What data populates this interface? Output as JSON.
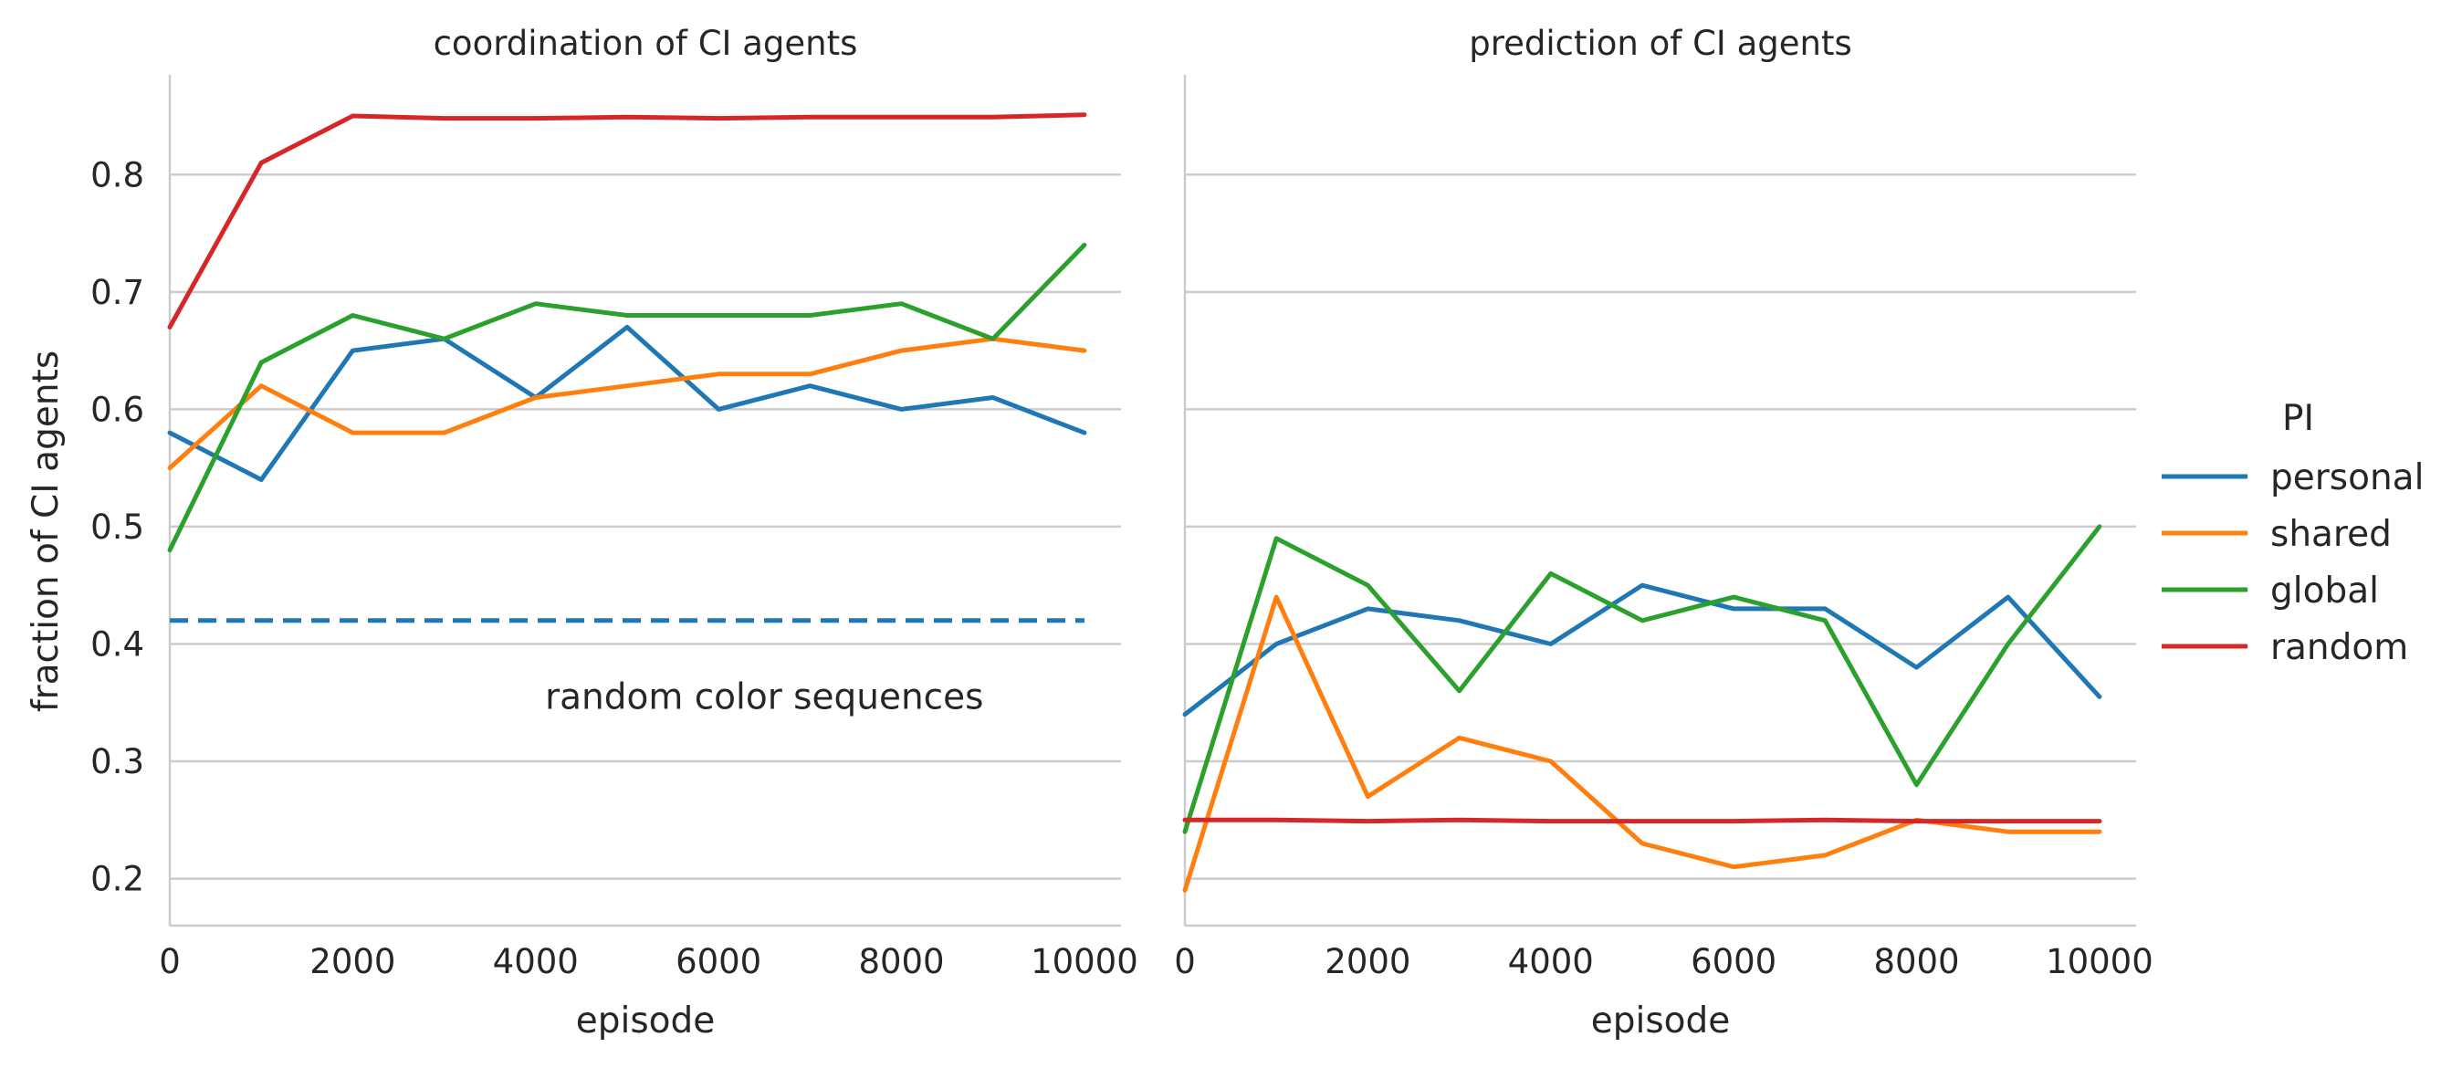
{
  "chart_data": [
    {
      "type": "line",
      "title": "coordination of CI agents",
      "xlabel": "episode",
      "ylabel": "fraction of CI agents",
      "xlim": [
        0,
        10400
      ],
      "ylim": [
        0.16,
        0.885
      ],
      "xticks": [
        0,
        2000,
        4000,
        6000,
        8000,
        10000
      ],
      "xtick_labels": [
        "0",
        "2000",
        "4000",
        "6000",
        "8000",
        "10000"
      ],
      "yticks": [
        0.2,
        0.3,
        0.4,
        0.5,
        0.6,
        0.7,
        0.8
      ],
      "ytick_labels": [
        "0.2",
        "0.3",
        "0.4",
        "0.5",
        "0.6",
        "0.7",
        "0.8"
      ],
      "grid": "horizontal",
      "x": [
        0,
        1000,
        2000,
        3000,
        4000,
        5000,
        6000,
        7000,
        8000,
        9000,
        10000
      ],
      "series": [
        {
          "name": "personal",
          "color": "#1f77b4",
          "values": [
            0.58,
            0.54,
            0.65,
            0.66,
            0.61,
            0.67,
            0.6,
            0.62,
            0.6,
            0.61,
            0.58
          ]
        },
        {
          "name": "shared",
          "color": "#ff7f0e",
          "values": [
            0.55,
            0.62,
            0.58,
            0.58,
            0.61,
            0.62,
            0.63,
            0.63,
            0.65,
            0.66,
            0.65
          ]
        },
        {
          "name": "global",
          "color": "#2ca02c",
          "values": [
            0.48,
            0.64,
            0.68,
            0.66,
            0.69,
            0.68,
            0.68,
            0.68,
            0.69,
            0.66,
            0.74
          ]
        },
        {
          "name": "random",
          "color": "#d62728",
          "values": [
            0.67,
            0.81,
            0.85,
            0.848,
            0.848,
            0.849,
            0.848,
            0.849,
            0.849,
            0.849,
            0.851
          ]
        }
      ],
      "reference_line": {
        "y": 0.42,
        "color": "#1f77b4",
        "style": "dashed",
        "x_range": [
          0,
          10000
        ]
      },
      "annotation": {
        "text": "random color sequences",
        "x": 6500,
        "y": 0.355
      }
    },
    {
      "type": "line",
      "title": "prediction of CI agents",
      "xlabel": "episode",
      "xlim": [
        0,
        10400
      ],
      "ylim": [
        0.16,
        0.885
      ],
      "xticks": [
        0,
        2000,
        4000,
        6000,
        8000,
        10000
      ],
      "xtick_labels": [
        "0",
        "2000",
        "4000",
        "6000",
        "8000",
        "10000"
      ],
      "grid": "horizontal",
      "x": [
        0,
        1000,
        2000,
        3000,
        4000,
        5000,
        6000,
        7000,
        8000,
        9000,
        10000
      ],
      "series": [
        {
          "name": "personal",
          "color": "#1f77b4",
          "values": [
            0.34,
            0.4,
            0.43,
            0.42,
            0.4,
            0.45,
            0.43,
            0.43,
            0.38,
            0.44,
            0.355
          ]
        },
        {
          "name": "shared",
          "color": "#ff7f0e",
          "values": [
            0.19,
            0.44,
            0.27,
            0.32,
            0.3,
            0.23,
            0.21,
            0.22,
            0.25,
            0.24,
            0.24
          ]
        },
        {
          "name": "global",
          "color": "#2ca02c",
          "values": [
            0.24,
            0.49,
            0.45,
            0.36,
            0.46,
            0.42,
            0.44,
            0.42,
            0.28,
            0.4,
            0.5
          ]
        },
        {
          "name": "random",
          "color": "#d62728",
          "values": [
            0.25,
            0.25,
            0.249,
            0.25,
            0.249,
            0.249,
            0.249,
            0.25,
            0.249,
            0.249,
            0.249
          ]
        }
      ]
    }
  ],
  "legend": {
    "title": "PI",
    "placement": "right",
    "entries": [
      {
        "label": "personal",
        "color": "#1f77b4"
      },
      {
        "label": "shared",
        "color": "#ff7f0e"
      },
      {
        "label": "global",
        "color": "#2ca02c"
      },
      {
        "label": "random",
        "color": "#d62728"
      }
    ]
  }
}
